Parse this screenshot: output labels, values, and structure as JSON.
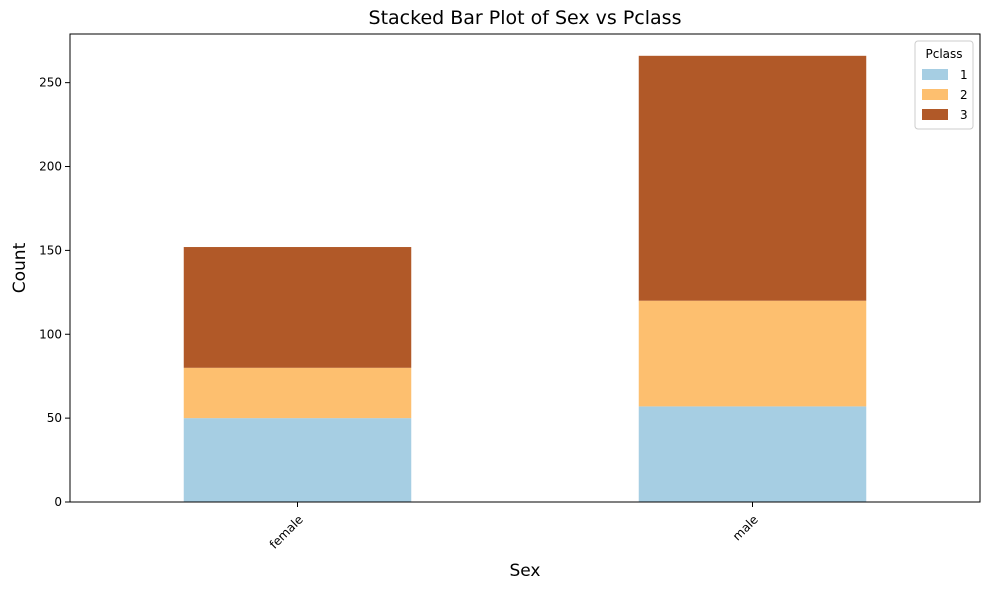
{
  "chart_data": {
    "type": "bar",
    "stacked": true,
    "title": "Stacked Bar Plot of Sex vs Pclass",
    "xlabel": "Sex",
    "ylabel": "Count",
    "categories": [
      "female",
      "male"
    ],
    "ylim": [
      0,
      279
    ],
    "yticks": [
      0,
      50,
      100,
      150,
      200,
      250
    ],
    "grid": false,
    "legend": {
      "title": "Pclass",
      "placement": "top-right"
    },
    "series": [
      {
        "name": "1",
        "values": [
          50,
          57
        ],
        "color": "#a6cee3"
      },
      {
        "name": "2",
        "values": [
          30,
          63
        ],
        "color": "#fdbf6f"
      },
      {
        "name": "3",
        "values": [
          72,
          146
        ],
        "color": "#b15928"
      }
    ]
  }
}
